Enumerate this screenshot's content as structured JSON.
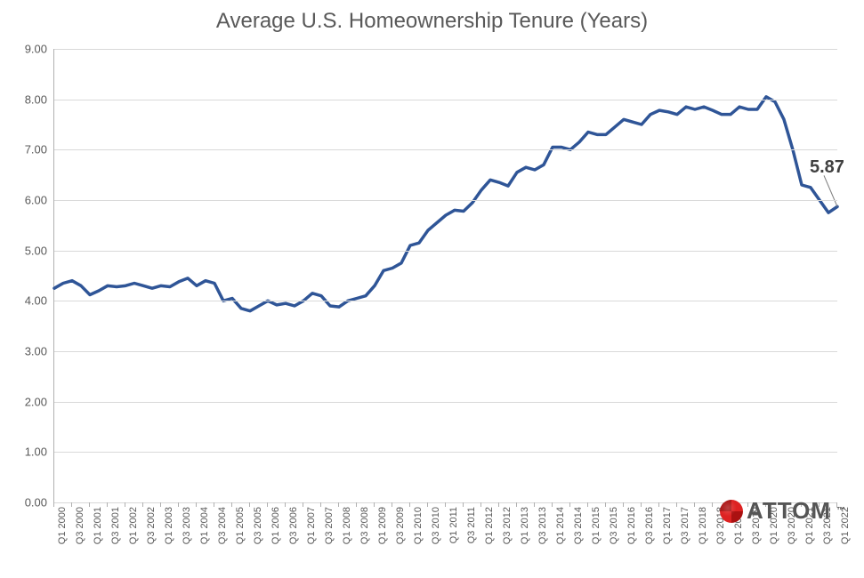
{
  "chart": {
    "type": "line",
    "title": "Average U.S. Homeownership Tenure (Years)",
    "title_fontsize": 24,
    "title_color": "#595959",
    "background_color": "#ffffff",
    "grid_color": "#d9d9d9",
    "axis_color": "#b0b0b0",
    "label_color": "#595959",
    "label_fontsize": 13,
    "xlabel_fontsize": 11,
    "line_color": "#2f5597",
    "line_width": 3.5,
    "ylim": [
      0,
      9
    ],
    "ytick_step": 1,
    "ytick_format": "0.00",
    "x_labels": [
      "Q1 2000",
      "Q3 2000",
      "Q1 2001",
      "Q3 2001",
      "Q1 2002",
      "Q3 2002",
      "Q1 2003",
      "Q3 2003",
      "Q1 2004",
      "Q3 2004",
      "Q1 2005",
      "Q3 2005",
      "Q1 2006",
      "Q3 2006",
      "Q1 2007",
      "Q3 2007",
      "Q1 2008",
      "Q3 2008",
      "Q1 2009",
      "Q3 2009",
      "Q1 2010",
      "Q3 2010",
      "Q1 2011",
      "Q3 2011",
      "Q1 2012",
      "Q3 2012",
      "Q1 2013",
      "Q3 2013",
      "Q1 2014",
      "Q3 2014",
      "Q1 2015",
      "Q3 2015",
      "Q1 2016",
      "Q3 2016",
      "Q1 2017",
      "Q3 2017",
      "Q1 2018",
      "Q3 2018",
      "Q1 2019",
      "Q3 2019",
      "Q1 2020",
      "Q3 2020",
      "Q1 2021",
      "Q3 2021",
      "Q1 2022"
    ],
    "values": [
      4.25,
      4.35,
      4.4,
      4.3,
      4.12,
      4.2,
      4.3,
      4.28,
      4.3,
      4.35,
      4.3,
      4.25,
      4.3,
      4.28,
      4.38,
      4.45,
      4.3,
      4.4,
      4.35,
      4.0,
      4.05,
      3.85,
      3.8,
      3.9,
      4.0,
      3.92,
      3.95,
      3.9,
      4.0,
      4.15,
      4.1,
      3.9,
      3.88,
      4.0,
      4.05,
      4.1,
      4.3,
      4.6,
      4.65,
      4.75,
      5.1,
      5.15,
      5.4,
      5.55,
      5.7,
      5.8,
      5.78,
      5.95,
      6.2,
      6.4,
      6.35,
      6.28,
      6.55,
      6.65,
      6.6,
      6.7,
      7.05,
      7.05,
      7.0,
      7.15,
      7.35,
      7.3,
      7.3,
      7.45,
      7.6,
      7.55,
      7.5,
      7.7,
      7.78,
      7.75,
      7.7,
      7.85,
      7.8,
      7.85,
      7.78,
      7.7,
      7.7,
      7.85,
      7.8,
      7.8,
      8.05,
      7.95,
      7.6,
      7.0,
      6.3,
      6.25,
      6.0,
      5.75,
      5.87
    ],
    "callout": {
      "label": "5.87",
      "x_index": 88,
      "fontsize": 20,
      "color": "#404040"
    },
    "callout_leader_color": "#7f7f7f",
    "logo_text": "ATTOM",
    "logo_tm": "™"
  }
}
